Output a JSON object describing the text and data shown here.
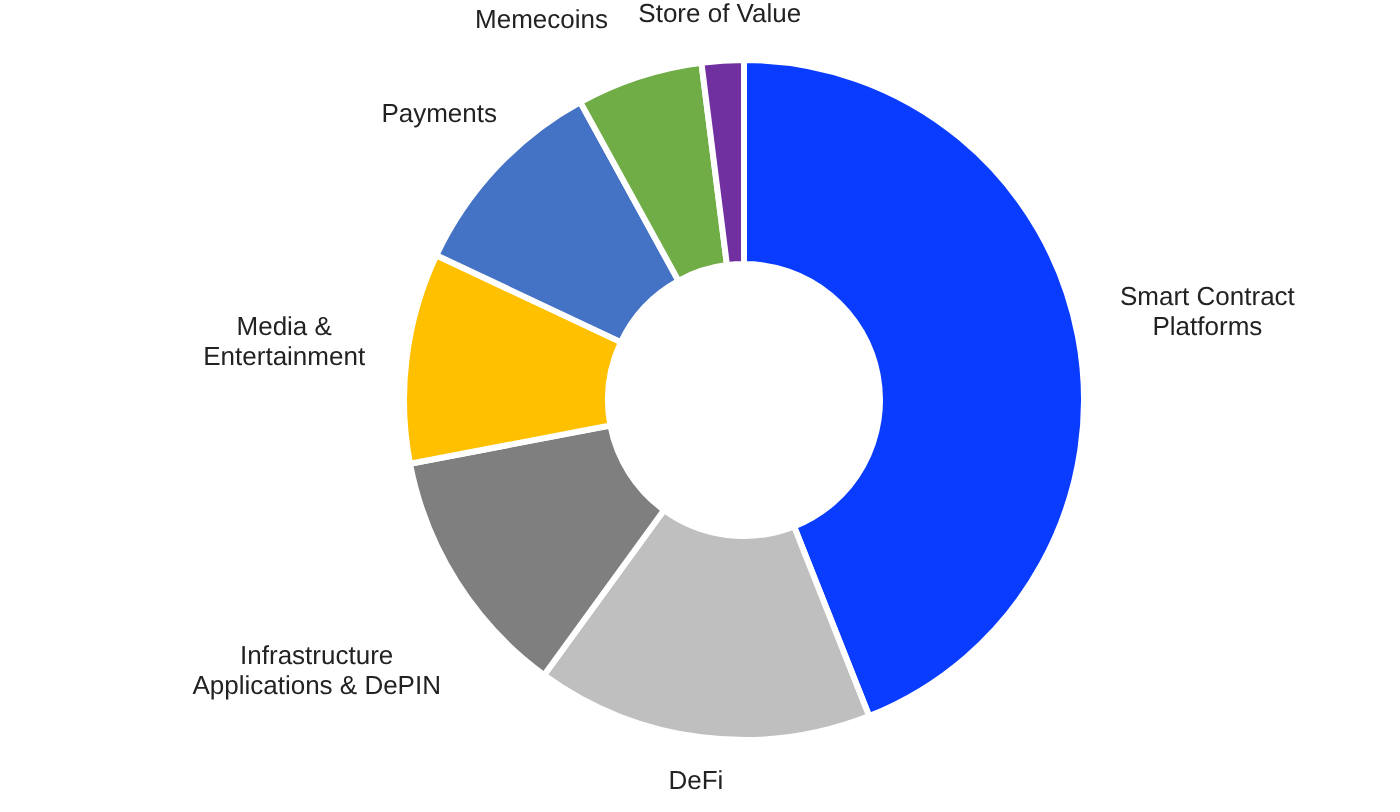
{
  "chart_data": {
    "type": "donut",
    "categories": [
      "Smart Contract\nPlatforms",
      "DeFi",
      "Infrastructure\nApplications & DePIN",
      "Media &\nEntertainment",
      "Payments",
      "Memecoins",
      "Store of Value"
    ],
    "values": [
      44,
      16,
      12,
      10,
      10,
      6,
      2
    ],
    "colors": [
      "#0a3cff",
      "#bfbfbf",
      "#7f7f7f",
      "#ffc000",
      "#4472c4",
      "#70ad47",
      "#7030a0"
    ]
  }
}
